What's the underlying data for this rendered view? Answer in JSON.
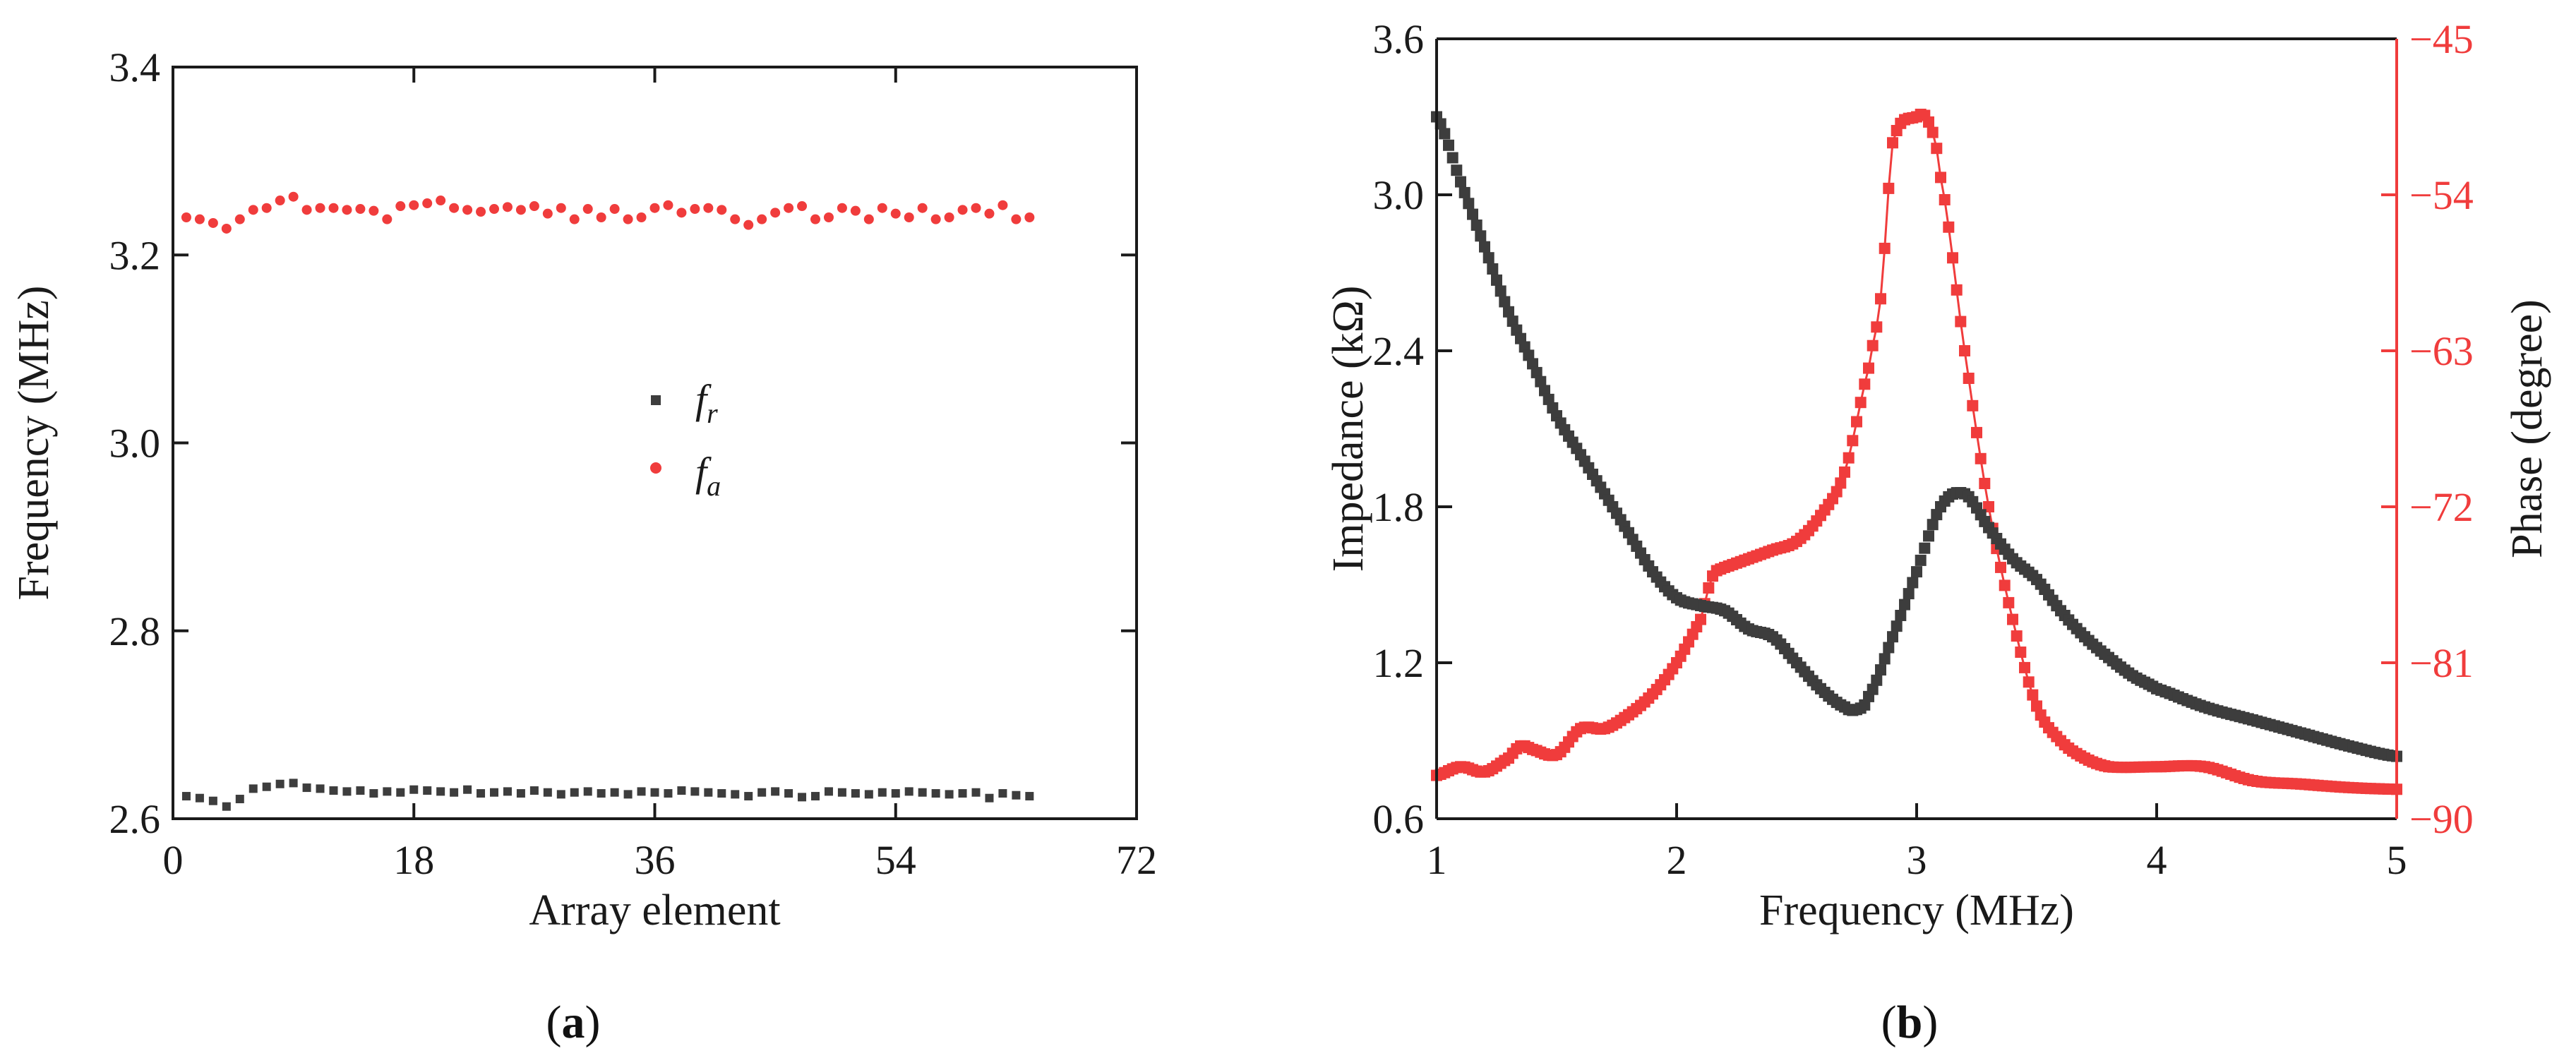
{
  "colors": {
    "black_series": "#3d3d3d",
    "red_series": "#f03c3c",
    "axis": "#1a1a1a",
    "red_axis": "#f03c3c"
  },
  "panels": [
    {
      "label_open": "(",
      "label_letter": "a",
      "label_close": ")"
    },
    {
      "label_open": "(",
      "label_letter": "b",
      "label_close": ")"
    }
  ],
  "chart_data": [
    {
      "type": "scatter",
      "xlabel": "Array element",
      "ylabel": "Frequency (MHz)",
      "xlim": [
        0,
        72
      ],
      "ylim": [
        2.6,
        3.4
      ],
      "xticks": [
        0,
        18,
        36,
        54,
        72
      ],
      "yticks": [
        2.6,
        2.8,
        3.0,
        3.2,
        3.4
      ],
      "xtick_labels": [
        "0",
        "18",
        "36",
        "54",
        "72"
      ],
      "ytick_labels": [
        "2.6",
        "2.8",
        "3.0",
        "3.2",
        "3.4"
      ],
      "legend_position": "center",
      "series": [
        {
          "name": "f_r",
          "legend_main": "f",
          "legend_sub": "r",
          "marker": "square",
          "color": "#3d3d3d",
          "x": [
            1,
            2,
            3,
            4,
            5,
            6,
            7,
            8,
            9,
            10,
            11,
            12,
            13,
            14,
            15,
            16,
            17,
            18,
            19,
            20,
            21,
            22,
            23,
            24,
            25,
            26,
            27,
            28,
            29,
            30,
            31,
            32,
            33,
            34,
            35,
            36,
            37,
            38,
            39,
            40,
            41,
            42,
            43,
            44,
            45,
            46,
            47,
            48,
            49,
            50,
            51,
            52,
            53,
            54,
            55,
            56,
            57,
            58,
            59,
            60,
            61,
            62,
            63,
            64
          ],
          "values": [
            2.624,
            2.622,
            2.619,
            2.613,
            2.621,
            2.632,
            2.634,
            2.637,
            2.638,
            2.633,
            2.632,
            2.63,
            2.629,
            2.63,
            2.627,
            2.629,
            2.628,
            2.631,
            2.63,
            2.629,
            2.628,
            2.631,
            2.627,
            2.628,
            2.629,
            2.627,
            2.63,
            2.628,
            2.626,
            2.628,
            2.629,
            2.627,
            2.628,
            2.626,
            2.629,
            2.628,
            2.627,
            2.63,
            2.629,
            2.628,
            2.627,
            2.626,
            2.624,
            2.628,
            2.629,
            2.627,
            2.623,
            2.624,
            2.629,
            2.628,
            2.627,
            2.626,
            2.628,
            2.627,
            2.629,
            2.628,
            2.627,
            2.626,
            2.627,
            2.628,
            2.622,
            2.627,
            2.625,
            2.624
          ]
        },
        {
          "name": "f_a",
          "legend_main": "f",
          "legend_sub": "a",
          "marker": "circle",
          "color": "#f03c3c",
          "x": [
            1,
            2,
            3,
            4,
            5,
            6,
            7,
            8,
            9,
            10,
            11,
            12,
            13,
            14,
            15,
            16,
            17,
            18,
            19,
            20,
            21,
            22,
            23,
            24,
            25,
            26,
            27,
            28,
            29,
            30,
            31,
            32,
            33,
            34,
            35,
            36,
            37,
            38,
            39,
            40,
            41,
            42,
            43,
            44,
            45,
            46,
            47,
            48,
            49,
            50,
            51,
            52,
            53,
            54,
            55,
            56,
            57,
            58,
            59,
            60,
            61,
            62,
            63,
            64
          ],
          "values": [
            3.24,
            3.238,
            3.234,
            3.228,
            3.238,
            3.248,
            3.25,
            3.258,
            3.262,
            3.248,
            3.25,
            3.25,
            3.248,
            3.249,
            3.247,
            3.238,
            3.252,
            3.253,
            3.255,
            3.258,
            3.25,
            3.248,
            3.246,
            3.249,
            3.251,
            3.248,
            3.252,
            3.244,
            3.25,
            3.238,
            3.249,
            3.24,
            3.249,
            3.238,
            3.24,
            3.25,
            3.253,
            3.245,
            3.249,
            3.25,
            3.248,
            3.238,
            3.232,
            3.238,
            3.245,
            3.25,
            3.252,
            3.238,
            3.24,
            3.25,
            3.247,
            3.238,
            3.25,
            3.244,
            3.24,
            3.25,
            3.238,
            3.24,
            3.248,
            3.25,
            3.244,
            3.253,
            3.238,
            3.24
          ]
        }
      ]
    },
    {
      "type": "line",
      "xlabel": "Frequency (MHz)",
      "ylabel": "Impedance (kΩ)",
      "y2label": "Phase (degree)",
      "xlim": [
        1,
        5
      ],
      "ylim": [
        0.6,
        3.6
      ],
      "y2lim": [
        -90,
        -45
      ],
      "xticks": [
        1,
        2,
        3,
        4,
        5
      ],
      "yticks": [
        0.6,
        1.2,
        1.8,
        2.4,
        3.0,
        3.6
      ],
      "y2ticks": [
        -90,
        -81,
        -72,
        -63,
        -54,
        -45
      ],
      "xtick_labels": [
        "1",
        "2",
        "3",
        "4",
        "5"
      ],
      "ytick_labels": [
        "0.6",
        "1.2",
        "1.8",
        "2.4",
        "3.0",
        "3.6"
      ],
      "y2tick_labels": [
        "−90",
        "−81",
        "−72",
        "−63",
        "−54",
        "−45"
      ],
      "series": [
        {
          "name": "Impedance",
          "axis": "left",
          "marker": "square",
          "color": "#3d3d3d",
          "x": [
            1.0,
            1.1,
            1.2,
            1.3,
            1.4,
            1.5,
            1.6,
            1.7,
            1.8,
            1.9,
            2.0,
            2.1,
            2.2,
            2.3,
            2.4,
            2.5,
            2.6,
            2.7,
            2.75,
            2.8,
            2.9,
            3.0,
            3.1,
            3.2,
            3.3,
            3.4,
            3.5,
            3.6,
            3.7,
            3.8,
            3.9,
            4.0,
            4.2,
            4.4,
            4.6,
            4.8,
            5.0
          ],
          "values": [
            3.3,
            3.05,
            2.8,
            2.55,
            2.35,
            2.15,
            2.0,
            1.85,
            1.7,
            1.55,
            1.45,
            1.42,
            1.4,
            1.33,
            1.3,
            1.2,
            1.1,
            1.03,
            1.02,
            1.07,
            1.3,
            1.55,
            1.8,
            1.85,
            1.72,
            1.6,
            1.52,
            1.4,
            1.3,
            1.22,
            1.15,
            1.1,
            1.03,
            0.98,
            0.93,
            0.88,
            0.84
          ]
        },
        {
          "name": "Phase",
          "axis": "right",
          "marker": "square",
          "color": "#f03c3c",
          "x": [
            1.0,
            1.1,
            1.2,
            1.3,
            1.35,
            1.4,
            1.5,
            1.6,
            1.7,
            1.8,
            1.9,
            2.0,
            2.1,
            2.15,
            2.2,
            2.3,
            2.4,
            2.5,
            2.6,
            2.7,
            2.8,
            2.85,
            2.9,
            3.0,
            3.05,
            3.1,
            3.2,
            3.3,
            3.4,
            3.5,
            3.6,
            3.7,
            3.8,
            4.0,
            4.2,
            4.4,
            4.6,
            4.8,
            5.0
          ],
          "values": [
            -87.5,
            -87.0,
            -87.3,
            -86.5,
            -85.8,
            -86.0,
            -86.3,
            -84.8,
            -84.8,
            -84.0,
            -82.8,
            -81.0,
            -78.5,
            -76.0,
            -75.5,
            -75.0,
            -74.5,
            -74.0,
            -72.5,
            -70.0,
            -64.0,
            -60.0,
            -51.0,
            -49.5,
            -49.8,
            -53.0,
            -63.0,
            -72.0,
            -78.5,
            -83.5,
            -85.5,
            -86.5,
            -87.0,
            -87.0,
            -87.0,
            -87.8,
            -88.0,
            -88.2,
            -88.3
          ]
        }
      ]
    }
  ]
}
